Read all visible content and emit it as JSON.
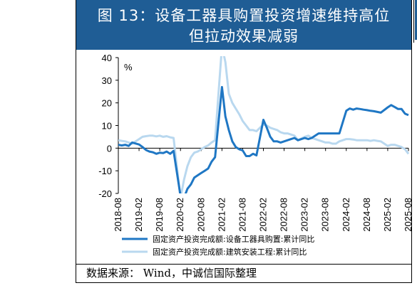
{
  "title": {
    "line1": "图 13：设备工器具购置投资增速维持高位",
    "line2": "但拉动效果减弱"
  },
  "source": "数据来源： Wind，中诚信国际整理",
  "colors": {
    "title_bg": "#1f5d95",
    "series_dark": "#1f77c4",
    "series_light": "#b9d8ef"
  },
  "chart_data": {
    "type": "line",
    "ylabel": "%",
    "ylim": [
      -20,
      40
    ],
    "yticks": [
      40,
      30,
      20,
      10,
      0,
      -10,
      -20
    ],
    "xticks": [
      "2018-08",
      "2019-02",
      "2019-08",
      "2020-02",
      "2020-08",
      "2021-02",
      "2021-08",
      "2022-02",
      "2022-08",
      "2023-02",
      "2023-08",
      "2024-02",
      "2024-08",
      "2025-02",
      "2025-08"
    ],
    "series": [
      {
        "name": "固定资产投资完成额:设备工器具购置:累计同比",
        "color": "#1f77c4",
        "points": [
          [
            "2018-08",
            1.5
          ],
          [
            "2018-09",
            1.2
          ],
          [
            "2018-10",
            1.5
          ],
          [
            "2018-11",
            1.0
          ],
          [
            "2018-12",
            2.5
          ],
          [
            "2019-02",
            1.6
          ],
          [
            "2019-03",
            0.5
          ],
          [
            "2019-04",
            -0.8
          ],
          [
            "2019-05",
            -1.5
          ],
          [
            "2019-06",
            -1.8
          ],
          [
            "2019-07",
            -2.5
          ],
          [
            "2019-08",
            -2.0
          ],
          [
            "2019-09",
            -2.2
          ],
          [
            "2019-10",
            -1.5
          ],
          [
            "2019-11",
            -2.5
          ],
          [
            "2019-12",
            -1.2
          ],
          [
            "2020-02",
            -21
          ],
          [
            "2020-03",
            -22
          ],
          [
            "2020-04",
            -18
          ],
          [
            "2020-05",
            -16
          ],
          [
            "2020-06",
            -13
          ],
          [
            "2020-07",
            -12
          ],
          [
            "2020-08",
            -11
          ],
          [
            "2020-09",
            -10
          ],
          [
            "2020-10",
            -9
          ],
          [
            "2020-11",
            -6
          ],
          [
            "2020-12",
            -4
          ],
          [
            "2021-02",
            27
          ],
          [
            "2021-03",
            14
          ],
          [
            "2021-04",
            8
          ],
          [
            "2021-05",
            3
          ],
          [
            "2021-06",
            0.5
          ],
          [
            "2021-07",
            -0.5
          ],
          [
            "2021-08",
            -1.0
          ],
          [
            "2021-09",
            -3.5
          ],
          [
            "2021-10",
            -3.5
          ],
          [
            "2021-11",
            -2.5
          ],
          [
            "2021-12",
            -3.2
          ],
          [
            "2022-02",
            12.5
          ],
          [
            "2022-03",
            9
          ],
          [
            "2022-04",
            5
          ],
          [
            "2022-05",
            3
          ],
          [
            "2022-06",
            3
          ],
          [
            "2022-07",
            2.5
          ],
          [
            "2022-08",
            3.0
          ],
          [
            "2022-09",
            3.5
          ],
          [
            "2022-10",
            4.0
          ],
          [
            "2022-11",
            4.5
          ],
          [
            "2022-12",
            3.5
          ],
          [
            "2023-02",
            4.5
          ],
          [
            "2023-03",
            4.0
          ],
          [
            "2023-04",
            4.5
          ],
          [
            "2023-05",
            5.5
          ],
          [
            "2023-06",
            6.5
          ],
          [
            "2023-07",
            6.5
          ],
          [
            "2023-08",
            6.5
          ],
          [
            "2023-09",
            6.5
          ],
          [
            "2023-10",
            6.5
          ],
          [
            "2023-11",
            6.5
          ],
          [
            "2023-12",
            6.5
          ],
          [
            "2024-02",
            16.5
          ],
          [
            "2024-03",
            17.5
          ],
          [
            "2024-04",
            17.0
          ],
          [
            "2024-05",
            17.5
          ],
          [
            "2024-06",
            17.3
          ],
          [
            "2024-07",
            17.0
          ],
          [
            "2024-08",
            16.8
          ],
          [
            "2024-09",
            16.5
          ],
          [
            "2024-10",
            16.3
          ],
          [
            "2024-11",
            16.0
          ],
          [
            "2024-12",
            15.7
          ],
          [
            "2025-02",
            18.0
          ],
          [
            "2025-03",
            19.0
          ],
          [
            "2025-04",
            18.2
          ],
          [
            "2025-05",
            17.3
          ],
          [
            "2025-06",
            17.3
          ],
          [
            "2025-07",
            15.2
          ],
          [
            "2025-08",
            14.6
          ]
        ]
      },
      {
        "name": "固定资产投资完成额:建筑安装工程:累计同比",
        "color": "#b9d8ef",
        "points": [
          [
            "2018-08",
            3.5
          ],
          [
            "2018-09",
            3.2
          ],
          [
            "2018-10",
            3.0
          ],
          [
            "2018-11",
            2.5
          ],
          [
            "2018-12",
            2.0
          ],
          [
            "2019-02",
            4.0
          ],
          [
            "2019-03",
            5.0
          ],
          [
            "2019-04",
            5.3
          ],
          [
            "2019-05",
            5.5
          ],
          [
            "2019-06",
            5.5
          ],
          [
            "2019-07",
            5.2
          ],
          [
            "2019-08",
            5.5
          ],
          [
            "2019-09",
            5.0
          ],
          [
            "2019-10",
            5.3
          ],
          [
            "2019-11",
            4.8
          ],
          [
            "2019-12",
            4.5
          ],
          [
            "2020-02",
            -22
          ],
          [
            "2020-03",
            -14
          ],
          [
            "2020-04",
            -8
          ],
          [
            "2020-05",
            -4
          ],
          [
            "2020-06",
            -2
          ],
          [
            "2020-07",
            -1.5
          ],
          [
            "2020-08",
            -0.5
          ],
          [
            "2020-09",
            0.5
          ],
          [
            "2020-10",
            1.2
          ],
          [
            "2020-11",
            2.5
          ],
          [
            "2020-12",
            3.5
          ],
          [
            "2021-02",
            45
          ],
          [
            "2021-03",
            38
          ],
          [
            "2021-04",
            24
          ],
          [
            "2021-05",
            20
          ],
          [
            "2021-06",
            17.5
          ],
          [
            "2021-07",
            15
          ],
          [
            "2021-08",
            12
          ],
          [
            "2021-09",
            10
          ],
          [
            "2021-10",
            8
          ],
          [
            "2021-11",
            8
          ],
          [
            "2021-12",
            7.5
          ],
          [
            "2022-02",
            10.5
          ],
          [
            "2022-03",
            10.0
          ],
          [
            "2022-04",
            9.0
          ],
          [
            "2022-05",
            8.5
          ],
          [
            "2022-06",
            8.0
          ],
          [
            "2022-07",
            7.0
          ],
          [
            "2022-08",
            6.5
          ],
          [
            "2022-09",
            6.5
          ],
          [
            "2022-10",
            6.0
          ],
          [
            "2022-11",
            5.5
          ],
          [
            "2022-12",
            3.5
          ],
          [
            "2023-02",
            5.0
          ],
          [
            "2023-03",
            5.5
          ],
          [
            "2023-04",
            4.5
          ],
          [
            "2023-05",
            4.0
          ],
          [
            "2023-06",
            3.5
          ],
          [
            "2023-07",
            3.0
          ],
          [
            "2023-08",
            2.5
          ],
          [
            "2023-09",
            2.5
          ],
          [
            "2023-10",
            2.0
          ],
          [
            "2023-11",
            2.0
          ],
          [
            "2023-12",
            3.0
          ],
          [
            "2024-02",
            4.0
          ],
          [
            "2024-03",
            4.0
          ],
          [
            "2024-04",
            3.8
          ],
          [
            "2024-05",
            3.5
          ],
          [
            "2024-06",
            3.5
          ],
          [
            "2024-07",
            3.5
          ],
          [
            "2024-08",
            3.5
          ],
          [
            "2024-09",
            3.2
          ],
          [
            "2024-10",
            3.5
          ],
          [
            "2024-11",
            3.2
          ],
          [
            "2024-12",
            3.0
          ],
          [
            "2025-02",
            1.0
          ],
          [
            "2025-03",
            1.5
          ],
          [
            "2025-04",
            1.5
          ],
          [
            "2025-05",
            1.0
          ],
          [
            "2025-06",
            0.5
          ],
          [
            "2025-07",
            -0.5
          ],
          [
            "2025-08",
            -2.5
          ]
        ]
      }
    ]
  }
}
